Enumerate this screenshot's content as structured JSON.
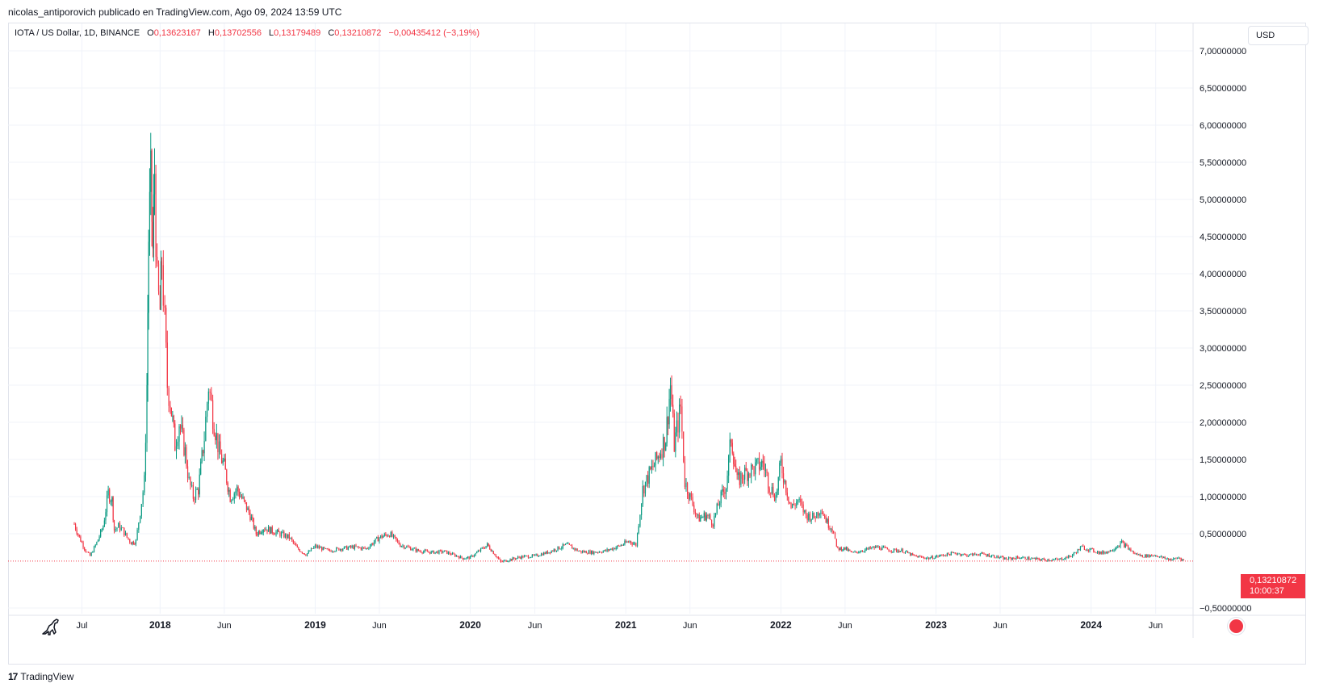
{
  "header": {
    "publisher_line": "nicolas_antiporovich publicado en TradingView.com, Ago 09, 2024 13:59 UTC"
  },
  "legend": {
    "symbol": "IOTA / US Dollar, 1D, BINANCE",
    "open_label": "O",
    "open_value": "0,13623167",
    "high_label": "H",
    "high_value": "0,13702556",
    "low_label": "L",
    "low_value": "0,13179489",
    "close_label": "C",
    "close_value": "0,13210872",
    "change": "−0,00435412 (−3,19%)"
  },
  "currency_button": "USD",
  "last_price": {
    "value": "0,13210872",
    "countdown": "10:00:37"
  },
  "footer": {
    "brand": "TradingView",
    "logo_text": "17"
  },
  "colors": {
    "up": "#089981",
    "down": "#f23645",
    "grid": "#f0f3fa",
    "axis_text": "#131722",
    "last_price_line": "#f23645"
  },
  "icons": {
    "bottom_left": "dinosaur-icon",
    "bottom_right": "us-flag-icon"
  },
  "chart_data": {
    "type": "candlestick",
    "y_axis": {
      "min": -0.5,
      "max": 7.0,
      "ticks": [
        {
          "value": 7.0,
          "label": "7,00000000"
        },
        {
          "value": 6.5,
          "label": "6,50000000"
        },
        {
          "value": 6.0,
          "label": "6,00000000"
        },
        {
          "value": 5.5,
          "label": "5,50000000"
        },
        {
          "value": 5.0,
          "label": "5,00000000"
        },
        {
          "value": 4.5,
          "label": "4,50000000"
        },
        {
          "value": 4.0,
          "label": "4,00000000"
        },
        {
          "value": 3.5,
          "label": "3,50000000"
        },
        {
          "value": 3.0,
          "label": "3,00000000"
        },
        {
          "value": 2.5,
          "label": "2,50000000"
        },
        {
          "value": 2.0,
          "label": "2,00000000"
        },
        {
          "value": 1.5,
          "label": "1,50000000"
        },
        {
          "value": 1.0,
          "label": "1,00000000"
        },
        {
          "value": 0.5,
          "label": "0,50000000"
        },
        {
          "value": -0.5,
          "label": "−0,50000000"
        }
      ]
    },
    "x_axis": {
      "start": "2017-06-13",
      "end": "2024-08-09",
      "ticks": [
        {
          "date": "2017-07-01",
          "label": "Jul",
          "bold": false
        },
        {
          "date": "2018-01-01",
          "label": "2018",
          "bold": true
        },
        {
          "date": "2018-06-01",
          "label": "Jun",
          "bold": false
        },
        {
          "date": "2019-01-01",
          "label": "2019",
          "bold": true
        },
        {
          "date": "2019-06-01",
          "label": "Jun",
          "bold": false
        },
        {
          "date": "2020-01-01",
          "label": "2020",
          "bold": true
        },
        {
          "date": "2020-06-01",
          "label": "Jun",
          "bold": false
        },
        {
          "date": "2021-01-01",
          "label": "2021",
          "bold": true
        },
        {
          "date": "2021-06-01",
          "label": "Jun",
          "bold": false
        },
        {
          "date": "2022-01-01",
          "label": "2022",
          "bold": true
        },
        {
          "date": "2022-06-01",
          "label": "Jun",
          "bold": false
        },
        {
          "date": "2023-01-01",
          "label": "2023",
          "bold": true
        },
        {
          "date": "2023-06-01",
          "label": "Jun",
          "bold": false
        },
        {
          "date": "2024-01-01",
          "label": "2024",
          "bold": true
        },
        {
          "date": "2024-06-01",
          "label": "Jun",
          "bold": false
        }
      ]
    },
    "last_close": 0.13210872,
    "series": [
      {
        "date": "2017-06-13",
        "close": 0.63
      },
      {
        "date": "2017-06-25",
        "close": 0.45
      },
      {
        "date": "2017-07-10",
        "close": 0.27
      },
      {
        "date": "2017-07-20",
        "close": 0.2
      },
      {
        "date": "2017-08-05",
        "close": 0.38
      },
      {
        "date": "2017-08-20",
        "close": 0.6
      },
      {
        "date": "2017-09-01",
        "close": 1.05
      },
      {
        "date": "2017-09-10",
        "close": 0.95
      },
      {
        "date": "2017-09-15",
        "close": 0.55
      },
      {
        "date": "2017-09-25",
        "close": 0.6
      },
      {
        "date": "2017-10-05",
        "close": 0.55
      },
      {
        "date": "2017-10-15",
        "close": 0.45
      },
      {
        "date": "2017-10-25",
        "close": 0.38
      },
      {
        "date": "2017-11-05",
        "close": 0.4
      },
      {
        "date": "2017-11-15",
        "close": 0.8
      },
      {
        "date": "2017-11-25",
        "close": 1.2
      },
      {
        "date": "2017-12-01",
        "close": 2.5
      },
      {
        "date": "2017-12-05",
        "close": 4.5
      },
      {
        "date": "2017-12-10",
        "close": 5.2
      },
      {
        "date": "2017-12-15",
        "close": 4.3
      },
      {
        "date": "2017-12-19",
        "close": 5.4
      },
      {
        "date": "2017-12-25",
        "close": 3.8
      },
      {
        "date": "2018-01-01",
        "close": 3.5
      },
      {
        "date": "2018-01-05",
        "close": 4.2
      },
      {
        "date": "2018-01-12",
        "close": 3.3
      },
      {
        "date": "2018-01-18",
        "close": 2.5
      },
      {
        "date": "2018-01-25",
        "close": 2.3
      },
      {
        "date": "2018-02-05",
        "close": 1.7
      },
      {
        "date": "2018-02-15",
        "close": 2.0
      },
      {
        "date": "2018-03-01",
        "close": 1.6
      },
      {
        "date": "2018-03-10",
        "close": 1.2
      },
      {
        "date": "2018-03-20",
        "close": 1.0
      },
      {
        "date": "2018-04-01",
        "close": 1.1
      },
      {
        "date": "2018-04-15",
        "close": 1.8
      },
      {
        "date": "2018-04-25",
        "close": 2.5
      },
      {
        "date": "2018-05-05",
        "close": 2.1
      },
      {
        "date": "2018-05-20",
        "close": 1.6
      },
      {
        "date": "2018-06-01",
        "close": 1.4
      },
      {
        "date": "2018-06-15",
        "close": 1.0
      },
      {
        "date": "2018-07-01",
        "close": 1.1
      },
      {
        "date": "2018-07-15",
        "close": 0.95
      },
      {
        "date": "2018-08-01",
        "close": 0.75
      },
      {
        "date": "2018-08-15",
        "close": 0.5
      },
      {
        "date": "2018-09-01",
        "close": 0.58
      },
      {
        "date": "2018-10-01",
        "close": 0.52
      },
      {
        "date": "2018-11-01",
        "close": 0.45
      },
      {
        "date": "2018-11-20",
        "close": 0.3
      },
      {
        "date": "2018-12-10",
        "close": 0.22
      },
      {
        "date": "2019-01-01",
        "close": 0.33
      },
      {
        "date": "2019-02-01",
        "close": 0.27
      },
      {
        "date": "2019-03-01",
        "close": 0.3
      },
      {
        "date": "2019-04-01",
        "close": 0.32
      },
      {
        "date": "2019-05-01",
        "close": 0.3
      },
      {
        "date": "2019-06-01",
        "close": 0.45
      },
      {
        "date": "2019-06-25",
        "close": 0.5
      },
      {
        "date": "2019-07-20",
        "close": 0.35
      },
      {
        "date": "2019-09-01",
        "close": 0.27
      },
      {
        "date": "2019-10-01",
        "close": 0.25
      },
      {
        "date": "2019-11-01",
        "close": 0.26
      },
      {
        "date": "2019-12-15",
        "close": 0.17
      },
      {
        "date": "2020-01-01",
        "close": 0.18
      },
      {
        "date": "2020-02-10",
        "close": 0.35
      },
      {
        "date": "2020-03-13",
        "close": 0.12
      },
      {
        "date": "2020-04-01",
        "close": 0.15
      },
      {
        "date": "2020-05-01",
        "close": 0.19
      },
      {
        "date": "2020-06-01",
        "close": 0.2
      },
      {
        "date": "2020-07-01",
        "close": 0.25
      },
      {
        "date": "2020-08-15",
        "close": 0.35
      },
      {
        "date": "2020-09-15",
        "close": 0.26
      },
      {
        "date": "2020-10-15",
        "close": 0.25
      },
      {
        "date": "2020-11-15",
        "close": 0.27
      },
      {
        "date": "2020-12-15",
        "close": 0.33
      },
      {
        "date": "2021-01-10",
        "close": 0.4
      },
      {
        "date": "2021-01-25",
        "close": 0.35
      },
      {
        "date": "2021-02-10",
        "close": 1.1
      },
      {
        "date": "2021-02-25",
        "close": 1.3
      },
      {
        "date": "2021-03-15",
        "close": 1.5
      },
      {
        "date": "2021-04-05",
        "close": 1.8
      },
      {
        "date": "2021-04-16",
        "close": 2.5
      },
      {
        "date": "2021-04-25",
        "close": 1.7
      },
      {
        "date": "2021-05-10",
        "close": 2.2
      },
      {
        "date": "2021-05-20",
        "close": 1.2
      },
      {
        "date": "2021-06-01",
        "close": 1.0
      },
      {
        "date": "2021-06-20",
        "close": 0.7
      },
      {
        "date": "2021-07-10",
        "close": 0.75
      },
      {
        "date": "2021-07-25",
        "close": 0.65
      },
      {
        "date": "2021-08-10",
        "close": 0.95
      },
      {
        "date": "2021-08-25",
        "close": 1.15
      },
      {
        "date": "2021-09-06",
        "close": 1.8
      },
      {
        "date": "2021-09-20",
        "close": 1.2
      },
      {
        "date": "2021-10-05",
        "close": 1.3
      },
      {
        "date": "2021-10-20",
        "close": 1.35
      },
      {
        "date": "2021-11-05",
        "close": 1.4
      },
      {
        "date": "2021-11-20",
        "close": 1.45
      },
      {
        "date": "2021-12-05",
        "close": 1.15
      },
      {
        "date": "2021-12-20",
        "close": 1.0
      },
      {
        "date": "2022-01-01",
        "close": 1.45
      },
      {
        "date": "2022-01-10",
        "close": 1.2
      },
      {
        "date": "2022-01-25",
        "close": 0.85
      },
      {
        "date": "2022-02-10",
        "close": 0.95
      },
      {
        "date": "2022-03-01",
        "close": 0.75
      },
      {
        "date": "2022-03-20",
        "close": 0.72
      },
      {
        "date": "2022-04-05",
        "close": 0.85
      },
      {
        "date": "2022-04-20",
        "close": 0.65
      },
      {
        "date": "2022-05-05",
        "close": 0.55
      },
      {
        "date": "2022-05-12",
        "close": 0.3
      },
      {
        "date": "2022-06-01",
        "close": 0.3
      },
      {
        "date": "2022-06-18",
        "close": 0.24
      },
      {
        "date": "2022-07-15",
        "close": 0.28
      },
      {
        "date": "2022-08-15",
        "close": 0.32
      },
      {
        "date": "2022-09-15",
        "close": 0.28
      },
      {
        "date": "2022-10-15",
        "close": 0.27
      },
      {
        "date": "2022-11-10",
        "close": 0.2
      },
      {
        "date": "2022-12-15",
        "close": 0.17
      },
      {
        "date": "2023-01-15",
        "close": 0.21
      },
      {
        "date": "2023-02-15",
        "close": 0.24
      },
      {
        "date": "2023-03-15",
        "close": 0.21
      },
      {
        "date": "2023-04-15",
        "close": 0.23
      },
      {
        "date": "2023-05-15",
        "close": 0.2
      },
      {
        "date": "2023-06-15",
        "close": 0.16
      },
      {
        "date": "2023-07-15",
        "close": 0.18
      },
      {
        "date": "2023-08-20",
        "close": 0.16
      },
      {
        "date": "2023-09-15",
        "close": 0.15
      },
      {
        "date": "2023-10-15",
        "close": 0.15
      },
      {
        "date": "2023-11-15",
        "close": 0.2
      },
      {
        "date": "2023-12-10",
        "close": 0.32
      },
      {
        "date": "2024-01-01",
        "close": 0.28
      },
      {
        "date": "2024-01-25",
        "close": 0.24
      },
      {
        "date": "2024-02-15",
        "close": 0.27
      },
      {
        "date": "2024-03-13",
        "close": 0.38
      },
      {
        "date": "2024-03-25",
        "close": 0.32
      },
      {
        "date": "2024-04-13",
        "close": 0.23
      },
      {
        "date": "2024-05-01",
        "close": 0.2
      },
      {
        "date": "2024-06-01",
        "close": 0.21
      },
      {
        "date": "2024-06-20",
        "close": 0.17
      },
      {
        "date": "2024-07-10",
        "close": 0.15
      },
      {
        "date": "2024-07-25",
        "close": 0.18
      },
      {
        "date": "2024-08-09",
        "close": 0.1321
      }
    ]
  }
}
